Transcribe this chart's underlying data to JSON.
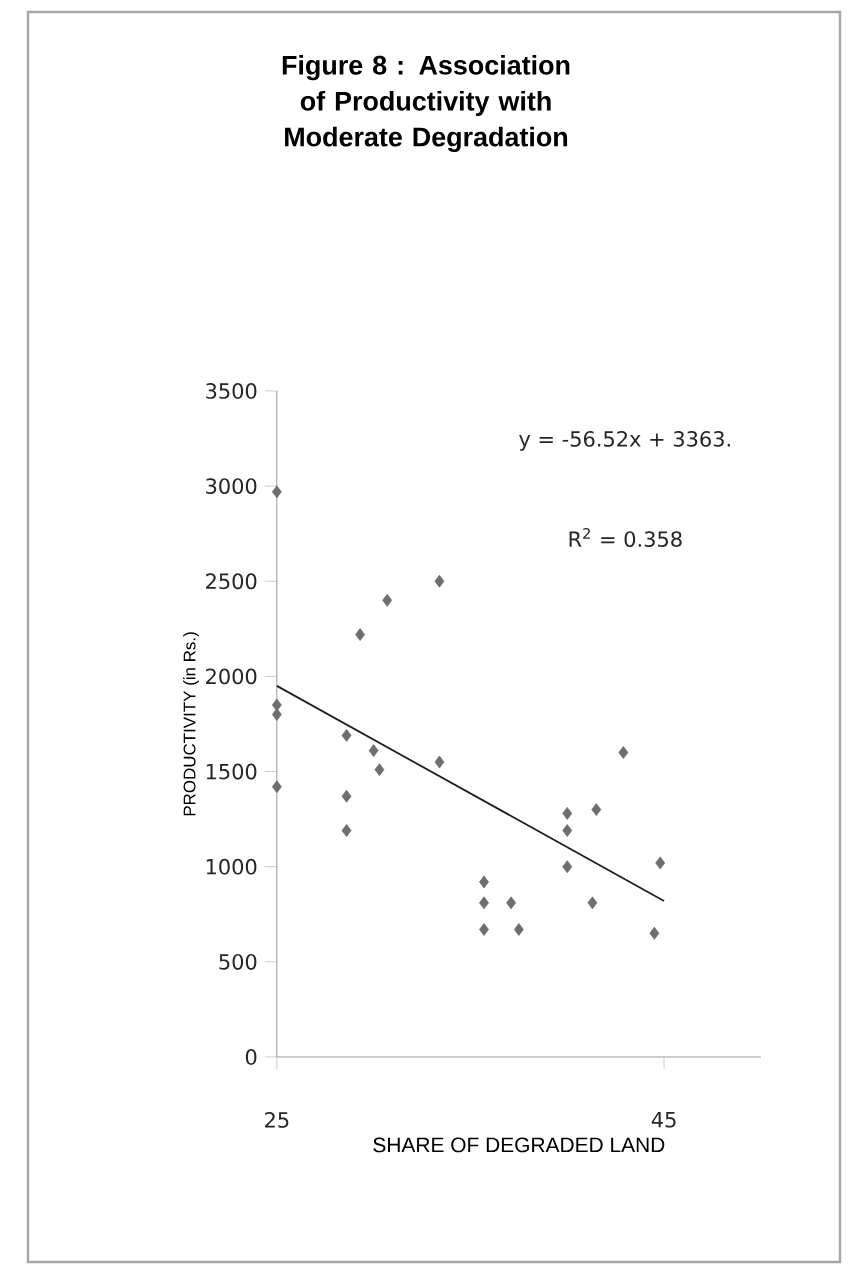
{
  "chart_data": {
    "type": "scatter",
    "title": "Figure 8 : Association of Productivity with Moderate Degradation",
    "xlabel": "SHARE OF DEGRADED LAND",
    "ylabel": "PRODUCTIVITY (in Rs.)",
    "annotations": [
      "y = -56.52x + 3363.",
      "R$^{2}$ = 0.358"
    ],
    "xlim": [
      25,
      50
    ],
    "xticks": [
      25,
      45
    ],
    "ylim": [
      0,
      3500
    ],
    "yticks": [
      0,
      500,
      1000,
      1500,
      2000,
      2500,
      3000,
      3500
    ],
    "series": [
      {
        "marker": "diamond",
        "color": "#6d6e71",
        "x": [
          25,
          25,
          25,
          25,
          28.6,
          28.6,
          28.6,
          29.3,
          30.7,
          30.0,
          30.3,
          33.4,
          33.4,
          35.7,
          35.7,
          35.7,
          37.1,
          37.5,
          40.0,
          40.0,
          40.0,
          41.3,
          41.5,
          42.9,
          44.5,
          44.8
        ],
        "values": [
          2970,
          1850,
          1800,
          1420,
          1690,
          1370,
          1190,
          2220,
          2400,
          1610,
          1510,
          2500,
          1550,
          920,
          810,
          670,
          810,
          670,
          1280,
          1190,
          1000,
          810,
          1300,
          1600,
          650,
          1020
        ]
      },
      {
        "type": "line",
        "color": "#231f20",
        "x": [
          25,
          45
        ],
        "values": [
          1950,
          820
        ]
      }
    ]
  }
}
